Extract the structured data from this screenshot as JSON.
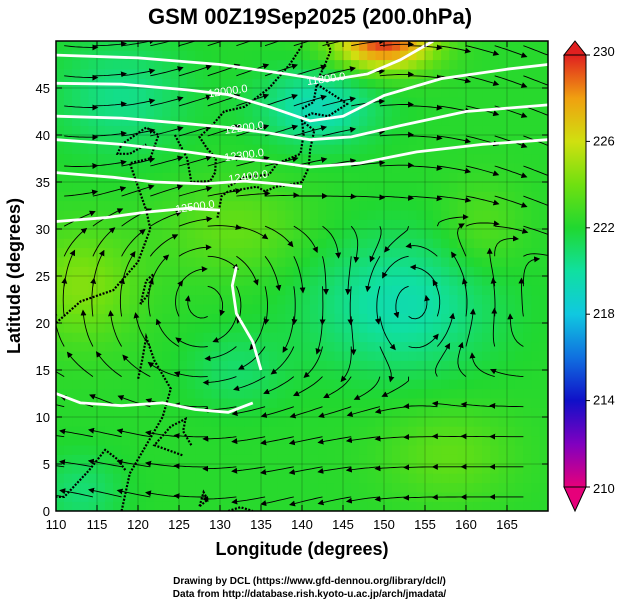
{
  "chart_data": {
    "type": "heatmap",
    "title": "GSM 00Z19Sep2025 (200.0hPa)",
    "xlabel": "Longitude (degrees)",
    "ylabel": "Latitude (degrees)",
    "xlim": [
      110,
      170
    ],
    "ylim": [
      0,
      50
    ],
    "x_ticks": [
      "110",
      "115",
      "120",
      "125",
      "130",
      "135",
      "140",
      "145",
      "150",
      "155",
      "160",
      "165"
    ],
    "y_ticks": [
      "0",
      "5",
      "10",
      "15",
      "20",
      "25",
      "30",
      "35",
      "40",
      "45"
    ],
    "colorbar": {
      "label_values": [
        "230",
        "226",
        "222",
        "218",
        "214",
        "210"
      ],
      "range": [
        210,
        230
      ],
      "stops": [
        {
          "v": 210,
          "color": "#e6007a"
        },
        {
          "v": 212,
          "color": "#8000c0"
        },
        {
          "v": 214,
          "color": "#1010c8"
        },
        {
          "v": 216,
          "color": "#1070e0"
        },
        {
          "v": 218,
          "color": "#10c8e0"
        },
        {
          "v": 220,
          "color": "#10e0a0"
        },
        {
          "v": 222,
          "color": "#20d830"
        },
        {
          "v": 224,
          "color": "#70e010"
        },
        {
          "v": 226,
          "color": "#d0e010"
        },
        {
          "v": 228,
          "color": "#f0a010"
        },
        {
          "v": 230,
          "color": "#e02020"
        }
      ]
    },
    "contours": [
      {
        "label": "11800.0",
        "lon": 143.0,
        "lat": 45.6,
        "path": [
          [
            110,
            48.5
          ],
          [
            120,
            48.2
          ],
          [
            130,
            47.5
          ],
          [
            138,
            46.5
          ],
          [
            143,
            45.8
          ],
          [
            148,
            46.5
          ],
          [
            152,
            48
          ],
          [
            156,
            50
          ]
        ]
      },
      {
        "label": "12000.0",
        "lon": 131.0,
        "lat": 44.3,
        "path": [
          [
            110,
            45.5
          ],
          [
            118,
            45.4
          ],
          [
            126,
            44.8
          ],
          [
            131,
            44.3
          ],
          [
            136,
            43
          ],
          [
            141,
            41.5
          ],
          [
            145,
            42
          ],
          [
            150,
            44.2
          ],
          [
            157,
            46
          ],
          [
            165,
            47
          ],
          [
            170,
            47.5
          ]
        ]
      },
      {
        "label": "12200.0",
        "lon": 133.0,
        "lat": 40.4,
        "path": [
          [
            110,
            42
          ],
          [
            118,
            41.8
          ],
          [
            126,
            41.2
          ],
          [
            131,
            40.8
          ],
          [
            136,
            40.2
          ],
          [
            141,
            39.5
          ],
          [
            146,
            39.8
          ],
          [
            152,
            41
          ],
          [
            160,
            42.5
          ],
          [
            170,
            43.2
          ]
        ]
      },
      {
        "label": "12300.0",
        "lon": 133.0,
        "lat": 37.5,
        "path": [
          [
            110,
            39.5
          ],
          [
            118,
            39
          ],
          [
            126,
            38.2
          ],
          [
            131,
            37.6
          ],
          [
            136,
            37.2
          ],
          [
            141,
            36.6
          ],
          [
            147,
            37
          ],
          [
            154,
            38.2
          ],
          [
            162,
            39
          ],
          [
            170,
            39.5
          ]
        ]
      },
      {
        "label": "12400.0",
        "lon": 133.5,
        "lat": 35.2,
        "path": [
          [
            110,
            36
          ],
          [
            117,
            35.5
          ],
          [
            122,
            35
          ],
          [
            128,
            34.8
          ],
          [
            133,
            35.1
          ],
          [
            137,
            34.8
          ],
          [
            140,
            34.5
          ]
        ]
      },
      {
        "label": "12500.0",
        "lon": 127.0,
        "lat": 32.0,
        "path": [
          [
            110,
            30.8
          ],
          [
            116,
            31.2
          ],
          [
            121,
            31.8
          ],
          [
            126,
            32.2
          ],
          [
            130,
            32
          ]
        ]
      },
      {
        "label": "",
        "lon": 0,
        "lat": 0,
        "path": [
          [
            135,
            15
          ],
          [
            134,
            18
          ],
          [
            132,
            21
          ],
          [
            131.5,
            24
          ],
          [
            132,
            26
          ]
        ]
      },
      {
        "label": "",
        "lon": 0,
        "lat": 0,
        "path": [
          [
            110,
            12.5
          ],
          [
            113,
            11.5
          ],
          [
            118,
            11.2
          ],
          [
            123,
            11.5
          ],
          [
            127,
            10.8
          ],
          [
            131,
            10.5
          ],
          [
            134,
            11.5
          ]
        ]
      }
    ],
    "credits": [
      "Drawing by DCL (https://www.gfd-dennou.org/library/dcl/)",
      "Data from http://database.rish.kyoto-u.ac.jp/arch/jmadata/"
    ]
  }
}
